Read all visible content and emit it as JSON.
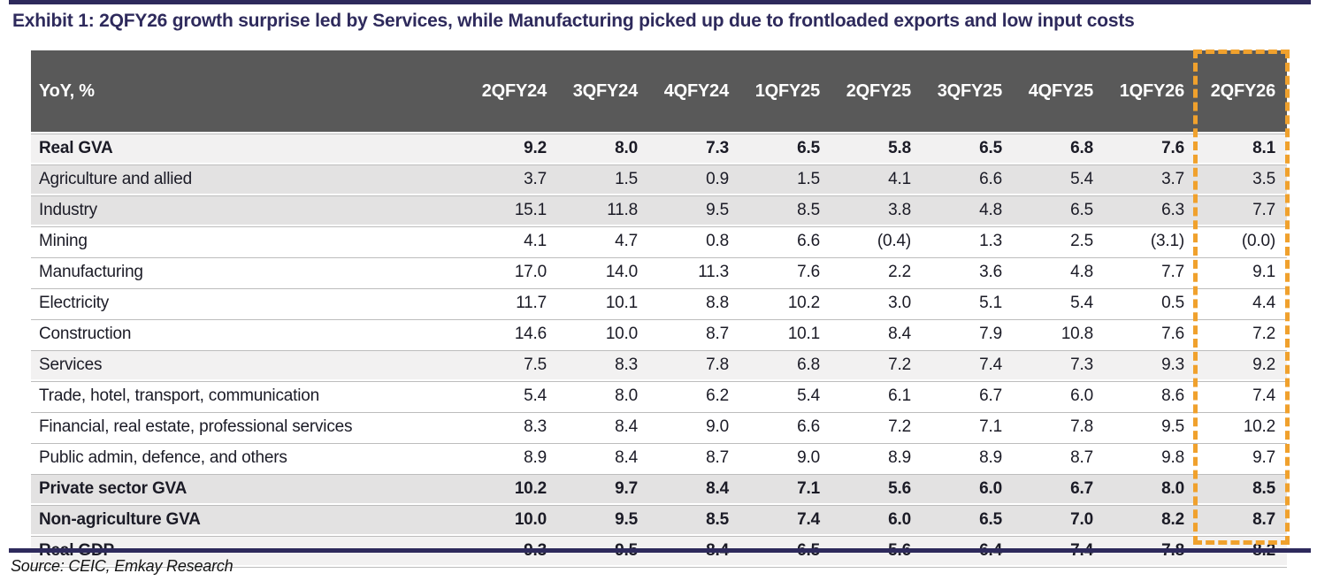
{
  "title": "Exhibit 1: 2QFY26 growth surprise led by Services, while Manufacturing picked up due to frontloaded exports and low input costs",
  "source": "Source: CEIC, Emkay Research",
  "colors": {
    "navy": "#2e2a5c",
    "header_bg": "#595959",
    "header_text": "#ffffff",
    "highlight_dash": "#f0a12d",
    "row_light": "#f2f1f1",
    "row_mid": "#e3e2e2",
    "row_white": "#ffffff",
    "hairline": "#bdbdbd",
    "text": "#1b1b26"
  },
  "table": {
    "corner_label": "YoY, %",
    "columns": [
      "2QFY24",
      "3QFY24",
      "4QFY24",
      "1QFY25",
      "2QFY25",
      "3QFY25",
      "4QFY25",
      "1QFY26",
      "2QFY26"
    ],
    "highlighted_column": "2QFY26",
    "rows": [
      {
        "label": "Real GVA",
        "bold": true,
        "shade": "light",
        "values": [
          "9.2",
          "8.0",
          "7.3",
          "6.5",
          "5.8",
          "6.5",
          "6.8",
          "7.6",
          "8.1"
        ]
      },
      {
        "label": "Agriculture and allied",
        "bold": false,
        "shade": "mid",
        "values": [
          "3.7",
          "1.5",
          "0.9",
          "1.5",
          "4.1",
          "6.6",
          "5.4",
          "3.7",
          "3.5"
        ]
      },
      {
        "label": "Industry",
        "bold": false,
        "shade": "mid",
        "values": [
          "15.1",
          "11.8",
          "9.5",
          "8.5",
          "3.8",
          "4.8",
          "6.5",
          "6.3",
          "7.7"
        ]
      },
      {
        "label": "Mining",
        "bold": false,
        "shade": "white",
        "values": [
          "4.1",
          "4.7",
          "0.8",
          "6.6",
          "(0.4)",
          "1.3",
          "2.5",
          "(3.1)",
          "(0.0)"
        ]
      },
      {
        "label": "Manufacturing",
        "bold": false,
        "shade": "white",
        "values": [
          "17.0",
          "14.0",
          "11.3",
          "7.6",
          "2.2",
          "3.6",
          "4.8",
          "7.7",
          "9.1"
        ]
      },
      {
        "label": "Electricity",
        "bold": false,
        "shade": "white",
        "values": [
          "11.7",
          "10.1",
          "8.8",
          "10.2",
          "3.0",
          "5.1",
          "5.4",
          "0.5",
          "4.4"
        ]
      },
      {
        "label": "Construction",
        "bold": false,
        "shade": "white",
        "values": [
          "14.6",
          "10.0",
          "8.7",
          "10.1",
          "8.4",
          "7.9",
          "10.8",
          "7.6",
          "7.2"
        ]
      },
      {
        "label": "Services",
        "bold": false,
        "shade": "light",
        "values": [
          "7.5",
          "8.3",
          "7.8",
          "6.8",
          "7.2",
          "7.4",
          "7.3",
          "9.3",
          "9.2"
        ]
      },
      {
        "label": "Trade, hotel, transport, communication",
        "bold": false,
        "shade": "white",
        "values": [
          "5.4",
          "8.0",
          "6.2",
          "5.4",
          "6.1",
          "6.7",
          "6.0",
          "8.6",
          "7.4"
        ]
      },
      {
        "label": "Financial, real estate, professional services",
        "bold": false,
        "shade": "white",
        "values": [
          "8.3",
          "8.4",
          "9.0",
          "6.6",
          "7.2",
          "7.1",
          "7.8",
          "9.5",
          "10.2"
        ]
      },
      {
        "label": "Public admin, defence, and others",
        "bold": false,
        "shade": "white",
        "values": [
          "8.9",
          "8.4",
          "8.7",
          "9.0",
          "8.9",
          "8.9",
          "8.7",
          "9.8",
          "9.7"
        ]
      },
      {
        "label": "Private sector GVA",
        "bold": true,
        "shade": "mid",
        "values": [
          "10.2",
          "9.7",
          "8.4",
          "7.1",
          "5.6",
          "6.0",
          "6.7",
          "8.0",
          "8.5"
        ]
      },
      {
        "label": "Non-agriculture GVA",
        "bold": true,
        "shade": "mid",
        "values": [
          "10.0",
          "9.5",
          "8.5",
          "7.4",
          "6.0",
          "6.5",
          "7.0",
          "8.2",
          "8.7"
        ]
      },
      {
        "label": "Real GDP",
        "bold": true,
        "shade": "light",
        "values": [
          "9.3",
          "9.5",
          "8.4",
          "6.5",
          "5.6",
          "6.4",
          "7.4",
          "7.8",
          "8.2"
        ]
      }
    ]
  },
  "chart_data": {
    "type": "table",
    "title": "Exhibit 1: 2QFY26 growth surprise led by Services, while Manufacturing picked up due to frontloaded exports and low input costs",
    "unit": "YoY, %",
    "columns": [
      "2QFY24",
      "3QFY24",
      "4QFY24",
      "1QFY25",
      "2QFY25",
      "3QFY25",
      "4QFY25",
      "1QFY26",
      "2QFY26"
    ],
    "highlighted_column": "2QFY26",
    "series": [
      {
        "name": "Real GVA",
        "values": [
          9.2,
          8.0,
          7.3,
          6.5,
          5.8,
          6.5,
          6.8,
          7.6,
          8.1
        ]
      },
      {
        "name": "Agriculture and allied",
        "values": [
          3.7,
          1.5,
          0.9,
          1.5,
          4.1,
          6.6,
          5.4,
          3.7,
          3.5
        ]
      },
      {
        "name": "Industry",
        "values": [
          15.1,
          11.8,
          9.5,
          8.5,
          3.8,
          4.8,
          6.5,
          6.3,
          7.7
        ]
      },
      {
        "name": "Mining",
        "values": [
          4.1,
          4.7,
          0.8,
          6.6,
          -0.4,
          1.3,
          2.5,
          -3.1,
          -0.0
        ]
      },
      {
        "name": "Manufacturing",
        "values": [
          17.0,
          14.0,
          11.3,
          7.6,
          2.2,
          3.6,
          4.8,
          7.7,
          9.1
        ]
      },
      {
        "name": "Electricity",
        "values": [
          11.7,
          10.1,
          8.8,
          10.2,
          3.0,
          5.1,
          5.4,
          0.5,
          4.4
        ]
      },
      {
        "name": "Construction",
        "values": [
          14.6,
          10.0,
          8.7,
          10.1,
          8.4,
          7.9,
          10.8,
          7.6,
          7.2
        ]
      },
      {
        "name": "Services",
        "values": [
          7.5,
          8.3,
          7.8,
          6.8,
          7.2,
          7.4,
          7.3,
          9.3,
          9.2
        ]
      },
      {
        "name": "Trade, hotel, transport, communication",
        "values": [
          5.4,
          8.0,
          6.2,
          5.4,
          6.1,
          6.7,
          6.0,
          8.6,
          7.4
        ]
      },
      {
        "name": "Financial, real estate, professional services",
        "values": [
          8.3,
          8.4,
          9.0,
          6.6,
          7.2,
          7.1,
          7.8,
          9.5,
          10.2
        ]
      },
      {
        "name": "Public admin, defence, and others",
        "values": [
          8.9,
          8.4,
          8.7,
          9.0,
          8.9,
          8.9,
          8.7,
          9.8,
          9.7
        ]
      },
      {
        "name": "Private sector GVA",
        "values": [
          10.2,
          9.7,
          8.4,
          7.1,
          5.6,
          6.0,
          6.7,
          8.0,
          8.5
        ]
      },
      {
        "name": "Non-agriculture GVA",
        "values": [
          10.0,
          9.5,
          8.5,
          7.4,
          6.0,
          6.5,
          7.0,
          8.2,
          8.7
        ]
      },
      {
        "name": "Real GDP",
        "values": [
          9.3,
          9.5,
          8.4,
          6.5,
          5.6,
          6.4,
          7.4,
          7.8,
          8.2
        ]
      }
    ],
    "source": "Source: CEIC, Emkay Research"
  }
}
